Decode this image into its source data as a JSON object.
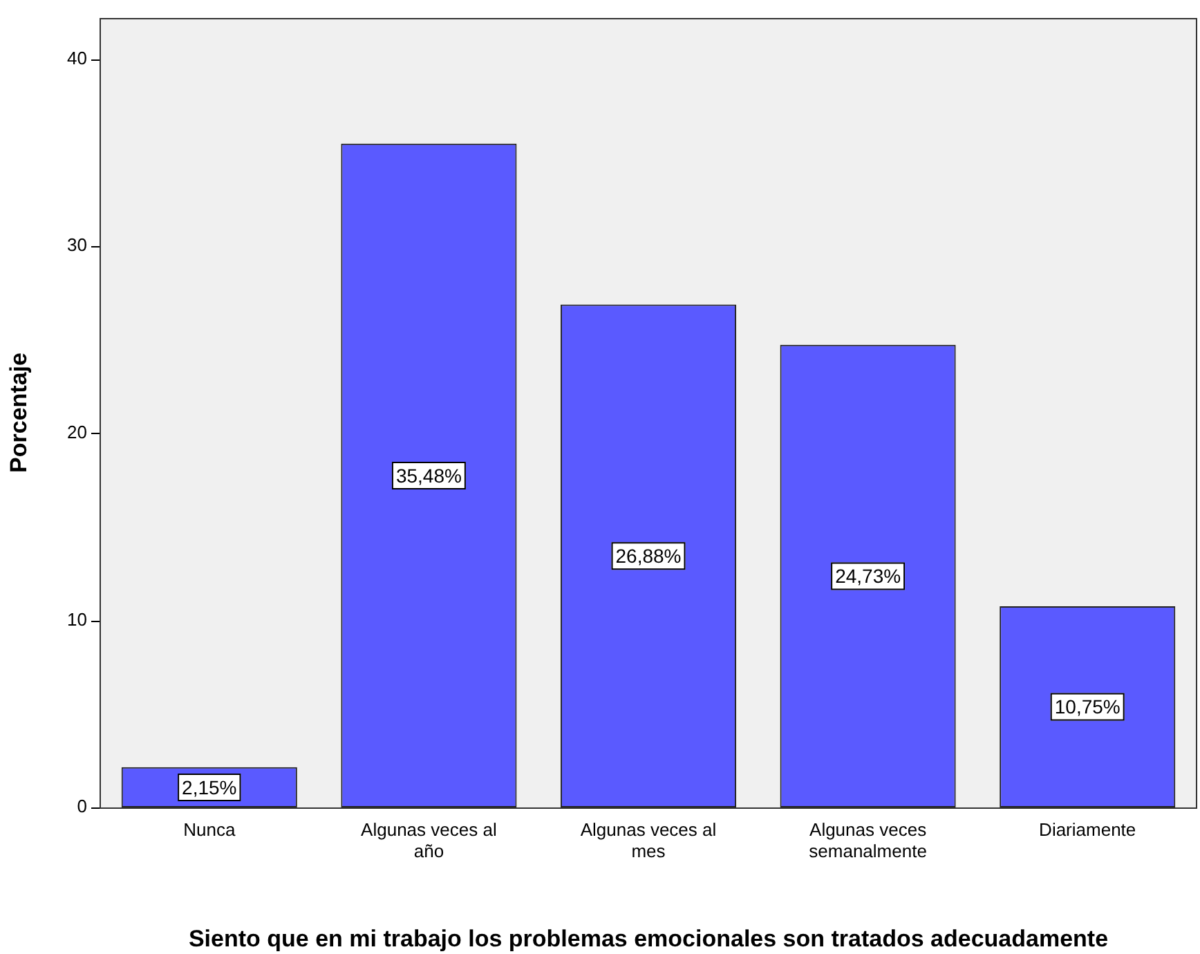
{
  "chart_data": {
    "type": "bar",
    "xlabel": "Siento que en mi trabajo los problemas emocionales son tratados adecuadamente",
    "ylabel": "Porcentaje",
    "categories": [
      "Nunca",
      "Algunas veces al año",
      "Algunas veces al mes",
      "Algunas veces semanalmente",
      "Diariamente"
    ],
    "values": [
      2.15,
      35.48,
      26.88,
      24.73,
      10.75
    ],
    "value_labels": [
      "2,15%",
      "35,48%",
      "26,88%",
      "24,73%",
      "10,75%"
    ],
    "color": "#5a5aff",
    "ylim": [
      0,
      42.2
    ],
    "yticks": [
      0,
      10,
      20,
      30,
      40
    ],
    "grid": false,
    "legend": false
  }
}
